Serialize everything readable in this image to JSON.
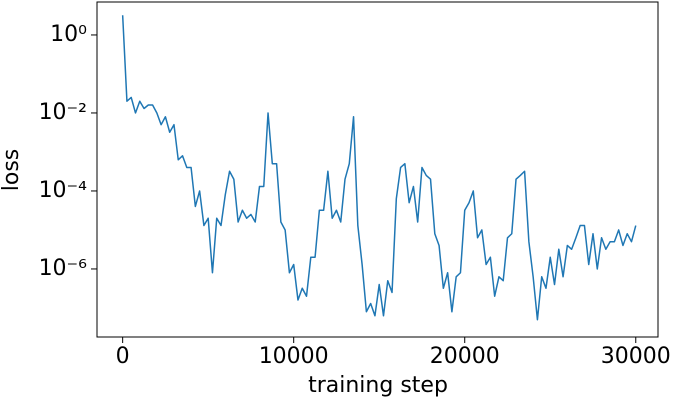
{
  "chart_data": {
    "type": "line",
    "xlabel": "training step",
    "ylabel": "loss",
    "ylog": true,
    "xlim": [
      -1500,
      31300
    ],
    "xticks": [
      0,
      10000,
      20000,
      30000
    ],
    "ylim": [
      1.8e-08,
      7
    ],
    "yticks": [
      {
        "value": 1,
        "label": "10⁰"
      },
      {
        "value": 0.01,
        "label": "10⁻²"
      },
      {
        "value": 0.0001,
        "label": "10⁻⁴"
      },
      {
        "value": 1e-06,
        "label": "10⁻⁶"
      }
    ],
    "x": [
      0,
      250,
      500,
      750,
      1000,
      1250,
      1500,
      1750,
      2000,
      2250,
      2500,
      2750,
      3000,
      3250,
      3500,
      3750,
      4000,
      4250,
      4500,
      4750,
      5000,
      5250,
      5500,
      5750,
      6000,
      6250,
      6500,
      6750,
      7000,
      7250,
      7500,
      7750,
      8000,
      8250,
      8500,
      8750,
      9000,
      9250,
      9500,
      9750,
      10000,
      10250,
      10500,
      10750,
      11000,
      11250,
      11500,
      11750,
      12000,
      12250,
      12500,
      12750,
      13000,
      13250,
      13500,
      13750,
      14000,
      14250,
      14500,
      14750,
      15000,
      15250,
      15500,
      15750,
      16000,
      16250,
      16500,
      16750,
      17000,
      17250,
      17500,
      17750,
      18000,
      18250,
      18500,
      18750,
      19000,
      19250,
      19500,
      19750,
      20000,
      20250,
      20500,
      20750,
      21000,
      21250,
      21500,
      21750,
      22000,
      22250,
      22500,
      22750,
      23000,
      23250,
      23500,
      23750,
      24000,
      24250,
      24500,
      24750,
      25000,
      25250,
      25500,
      25750,
      26000,
      26250,
      26500,
      26750,
      27000,
      27250,
      27500,
      27750,
      28000,
      28250,
      28500,
      28750,
      29000,
      29250,
      29500,
      29750,
      30000
    ],
    "series": [
      {
        "color": "#1f77b4",
        "values": [
          3.2,
          0.02,
          0.025,
          0.01,
          0.02,
          0.013,
          0.016,
          0.016,
          0.01,
          0.005,
          0.008,
          0.0032,
          0.005,
          0.00063,
          0.0008,
          0.0004,
          0.0004,
          4e-05,
          0.0001,
          1.3e-05,
          2e-05,
          8e-07,
          2e-05,
          1.3e-05,
          8e-05,
          0.00032,
          0.0002,
          1.6e-05,
          3.2e-05,
          2e-05,
          2.5e-05,
          1.6e-05,
          0.00013,
          0.00013,
          0.01,
          0.0005,
          0.0005,
          1.6e-05,
          1e-05,
          8e-07,
          1.3e-06,
          1.6e-07,
          3.2e-07,
          2e-07,
          2e-06,
          2e-06,
          3.2e-05,
          3.2e-05,
          0.00032,
          2e-05,
          3.2e-05,
          1.6e-05,
          0.0002,
          0.0005,
          0.008,
          1.3e-05,
          1.3e-06,
          8e-08,
          1.3e-07,
          6.3e-08,
          4e-07,
          6.3e-08,
          5e-07,
          2.5e-07,
          6.3e-05,
          0.0004,
          0.0005,
          5e-05,
          0.00013,
          1.6e-05,
          0.0004,
          0.00025,
          0.0002,
          8e-06,
          4e-06,
          3.2e-07,
          8e-07,
          8e-08,
          6.3e-07,
          8e-07,
          3.2e-05,
          5e-05,
          0.0001,
          6.3e-06,
          1e-05,
          1.3e-06,
          2e-06,
          2e-07,
          6.3e-07,
          5e-07,
          6.3e-06,
          8e-06,
          0.0002,
          0.00025,
          0.00032,
          5e-06,
          6.3e-07,
          5e-08,
          6.3e-07,
          3.2e-07,
          2e-06,
          4e-07,
          3.2e-06,
          6.3e-07,
          4e-06,
          3.2e-06,
          6.3e-06,
          1.3e-05,
          1.3e-05,
          1.3e-06,
          8e-06,
          1e-06,
          6.3e-06,
          3.2e-06,
          5e-06,
          5e-06,
          1e-05,
          4e-06,
          8e-06,
          5e-06,
          1.3e-05
        ]
      }
    ]
  }
}
